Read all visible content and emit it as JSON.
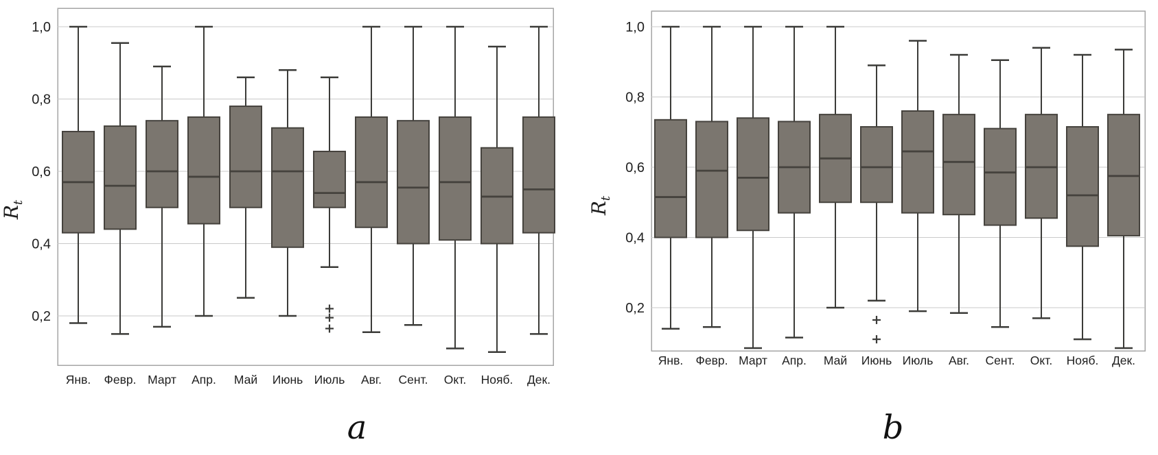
{
  "figure": {
    "background": "#ffffff",
    "box_fill": "#7b766f",
    "box_stroke": "#45423d",
    "line_color": "#3b3b38",
    "grid_color": "#c9c9c9",
    "border_color": "#a5a5a5",
    "text_color": "#1f1f1f"
  },
  "chart_data": [
    {
      "type": "box",
      "panel_label": "a",
      "ylabel": "Rt",
      "ylabel_display": {
        "base": "R",
        "sub": "t"
      },
      "grid": true,
      "legend": "none",
      "ylim": [
        0.06,
        1.05
      ],
      "yticks": [
        {
          "value": 1.0,
          "label": "1,0"
        },
        {
          "value": 0.8,
          "label": "0,8"
        },
        {
          "value": 0.6,
          "label": "0,6"
        },
        {
          "value": 0.4,
          "label": "0,4"
        },
        {
          "value": 0.2,
          "label": "0,2"
        }
      ],
      "categories": [
        "Янв.",
        "Февр.",
        "Март",
        "Апр.",
        "Май",
        "Июнь",
        "Июль",
        "Авг.",
        "Сент.",
        "Окт.",
        "Нояб.",
        "Дек."
      ],
      "boxes": [
        {
          "category": "Янв.",
          "whisker_low": 0.18,
          "q1": 0.43,
          "median": 0.57,
          "q3": 0.71,
          "whisker_high": 1.0,
          "outliers": []
        },
        {
          "category": "Февр.",
          "whisker_low": 0.15,
          "q1": 0.44,
          "median": 0.56,
          "q3": 0.725,
          "whisker_high": 0.955,
          "outliers": []
        },
        {
          "category": "Март",
          "whisker_low": 0.17,
          "q1": 0.5,
          "median": 0.6,
          "q3": 0.74,
          "whisker_high": 0.89,
          "outliers": []
        },
        {
          "category": "Апр.",
          "whisker_low": 0.2,
          "q1": 0.455,
          "median": 0.585,
          "q3": 0.75,
          "whisker_high": 1.0,
          "outliers": []
        },
        {
          "category": "Май",
          "whisker_low": 0.25,
          "q1": 0.5,
          "median": 0.6,
          "q3": 0.78,
          "whisker_high": 0.86,
          "outliers": []
        },
        {
          "category": "Июнь",
          "whisker_low": 0.2,
          "q1": 0.39,
          "median": 0.6,
          "q3": 0.72,
          "whisker_high": 0.88,
          "outliers": []
        },
        {
          "category": "Июль",
          "whisker_low": 0.335,
          "q1": 0.5,
          "median": 0.54,
          "q3": 0.655,
          "whisker_high": 0.86,
          "outliers": [
            0.22,
            0.195,
            0.165
          ]
        },
        {
          "category": "Авг.",
          "whisker_low": 0.155,
          "q1": 0.445,
          "median": 0.57,
          "q3": 0.75,
          "whisker_high": 1.0,
          "outliers": []
        },
        {
          "category": "Сент.",
          "whisker_low": 0.175,
          "q1": 0.4,
          "median": 0.555,
          "q3": 0.74,
          "whisker_high": 1.0,
          "outliers": []
        },
        {
          "category": "Окт.",
          "whisker_low": 0.11,
          "q1": 0.41,
          "median": 0.57,
          "q3": 0.75,
          "whisker_high": 1.0,
          "outliers": []
        },
        {
          "category": "Нояб.",
          "whisker_low": 0.1,
          "q1": 0.4,
          "median": 0.53,
          "q3": 0.665,
          "whisker_high": 0.945,
          "outliers": []
        },
        {
          "category": "Дек.",
          "whisker_low": 0.15,
          "q1": 0.43,
          "median": 0.55,
          "q3": 0.75,
          "whisker_high": 1.0,
          "outliers": []
        }
      ]
    },
    {
      "type": "box",
      "panel_label": "b",
      "ylabel": "Rt",
      "ylabel_display": {
        "base": "R",
        "sub": "t"
      },
      "grid": true,
      "legend": "none",
      "ylim": [
        0.06,
        1.05
      ],
      "yticks": [
        {
          "value": 1.0,
          "label": "1,0"
        },
        {
          "value": 0.8,
          "label": "0,8"
        },
        {
          "value": 0.6,
          "label": "0,6"
        },
        {
          "value": 0.4,
          "label": "0,4"
        },
        {
          "value": 0.2,
          "label": "0,2"
        }
      ],
      "categories": [
        "Янв.",
        "Февр.",
        "Март",
        "Апр.",
        "Май",
        "Июнь",
        "Июль",
        "Авг.",
        "Сент.",
        "Окт.",
        "Нояб.",
        "Дек."
      ],
      "boxes": [
        {
          "category": "Янв.",
          "whisker_low": 0.14,
          "q1": 0.4,
          "median": 0.515,
          "q3": 0.735,
          "whisker_high": 1.0,
          "outliers": []
        },
        {
          "category": "Февр.",
          "whisker_low": 0.145,
          "q1": 0.4,
          "median": 0.59,
          "q3": 0.73,
          "whisker_high": 1.0,
          "outliers": []
        },
        {
          "category": "Март",
          "whisker_low": 0.085,
          "q1": 0.42,
          "median": 0.57,
          "q3": 0.74,
          "whisker_high": 1.0,
          "outliers": []
        },
        {
          "category": "Апр.",
          "whisker_low": 0.115,
          "q1": 0.47,
          "median": 0.6,
          "q3": 0.73,
          "whisker_high": 1.0,
          "outliers": []
        },
        {
          "category": "Май",
          "whisker_low": 0.2,
          "q1": 0.5,
          "median": 0.625,
          "q3": 0.75,
          "whisker_high": 1.0,
          "outliers": []
        },
        {
          "category": "Июнь",
          "whisker_low": 0.22,
          "q1": 0.5,
          "median": 0.6,
          "q3": 0.715,
          "whisker_high": 0.89,
          "outliers": [
            0.165,
            0.11
          ]
        },
        {
          "category": "Июль",
          "whisker_low": 0.19,
          "q1": 0.47,
          "median": 0.645,
          "q3": 0.76,
          "whisker_high": 0.96,
          "outliers": []
        },
        {
          "category": "Авг.",
          "whisker_low": 0.185,
          "q1": 0.465,
          "median": 0.615,
          "q3": 0.75,
          "whisker_high": 0.92,
          "outliers": []
        },
        {
          "category": "Сент.",
          "whisker_low": 0.145,
          "q1": 0.435,
          "median": 0.585,
          "q3": 0.71,
          "whisker_high": 0.905,
          "outliers": []
        },
        {
          "category": "Окт.",
          "whisker_low": 0.17,
          "q1": 0.455,
          "median": 0.6,
          "q3": 0.75,
          "whisker_high": 0.94,
          "outliers": []
        },
        {
          "category": "Нояб.",
          "whisker_low": 0.11,
          "q1": 0.375,
          "median": 0.52,
          "q3": 0.715,
          "whisker_high": 0.92,
          "outliers": []
        },
        {
          "category": "Дек.",
          "whisker_low": 0.085,
          "q1": 0.405,
          "median": 0.575,
          "q3": 0.75,
          "whisker_high": 0.935,
          "outliers": []
        }
      ]
    }
  ]
}
